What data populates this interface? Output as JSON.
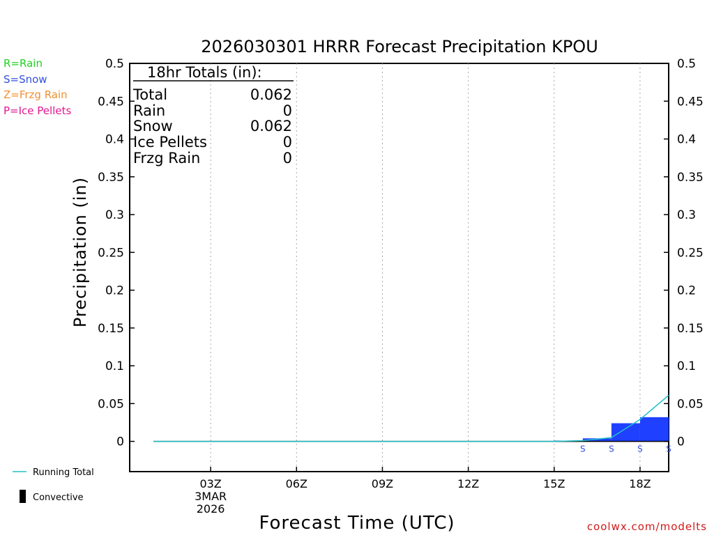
{
  "chart_data": {
    "type": "bar",
    "title": "2026030301 HRRR Forecast Precipitation KPOU",
    "xlabel": "Forecast Time (UTC)",
    "ylabel": "Precipitation (in)",
    "ylim": [
      -0.04,
      0.5
    ],
    "xlim": [
      0,
      18
    ],
    "y_ticks": [
      "0",
      "0.05",
      "0.1",
      "0.15",
      "0.2",
      "0.25",
      "0.3",
      "0.35",
      "0.4",
      "0.45",
      "0.5"
    ],
    "y_tick_values": [
      0,
      0.05,
      0.1,
      0.15,
      0.2,
      0.25,
      0.3,
      0.35,
      0.4,
      0.45,
      0.5
    ],
    "x_ticks": [
      {
        "label": "03Z",
        "hour": 2,
        "sub1": "3MAR",
        "sub2": "2026"
      },
      {
        "label": "06Z",
        "hour": 5
      },
      {
        "label": "09Z",
        "hour": 8
      },
      {
        "label": "12Z",
        "hour": 11
      },
      {
        "label": "15Z",
        "hour": 14
      },
      {
        "label": "18Z",
        "hour": 17
      }
    ],
    "hours": [
      1,
      2,
      3,
      4,
      5,
      6,
      7,
      8,
      9,
      10,
      11,
      12,
      13,
      14,
      15,
      16,
      17,
      18
    ],
    "hourly_precip": [
      0,
      0,
      0,
      0,
      0,
      0,
      0,
      0,
      0,
      0,
      0,
      0,
      0,
      0,
      0.001,
      0.004,
      0.024,
      0.032
    ],
    "running_total": [
      0,
      0,
      0,
      0,
      0,
      0,
      0,
      0,
      0,
      0,
      0,
      0,
      0,
      0,
      0.001,
      0.005,
      0.029,
      0.061
    ],
    "running_total_start": {
      "hour": 0,
      "value": 0
    },
    "ptype_markers": [
      {
        "hour": 15,
        "label": "S"
      },
      {
        "hour": 16,
        "label": "S"
      },
      {
        "hour": 17,
        "label": "S"
      },
      {
        "hour": 18,
        "label": "S"
      }
    ],
    "colors": {
      "snow_bar": "#2040ff",
      "running_total": "#20c0c8",
      "rain": "#20d020",
      "snow": "#3050e0",
      "frzg_rain": "#f09030",
      "ice_pellets": "#e01890",
      "credit": "#d01818"
    },
    "legend": {
      "ptype": [
        "R=Rain",
        "S=Snow",
        "Z=Frzg Rain",
        "P=Ice Pellets"
      ],
      "running_total": "Running Total",
      "convective": "Convective"
    },
    "totals": {
      "heading": "18hr Totals (in):",
      "rows": [
        {
          "label": "Total",
          "value": "0.062"
        },
        {
          "label": "Rain",
          "value": "0"
        },
        {
          "label": "Snow",
          "value": "0.062"
        },
        {
          "label": "Ice Pellets",
          "value": "0"
        },
        {
          "label": "Frzg Rain",
          "value": "0"
        }
      ]
    },
    "credit": "coolwx.com/modelts"
  }
}
